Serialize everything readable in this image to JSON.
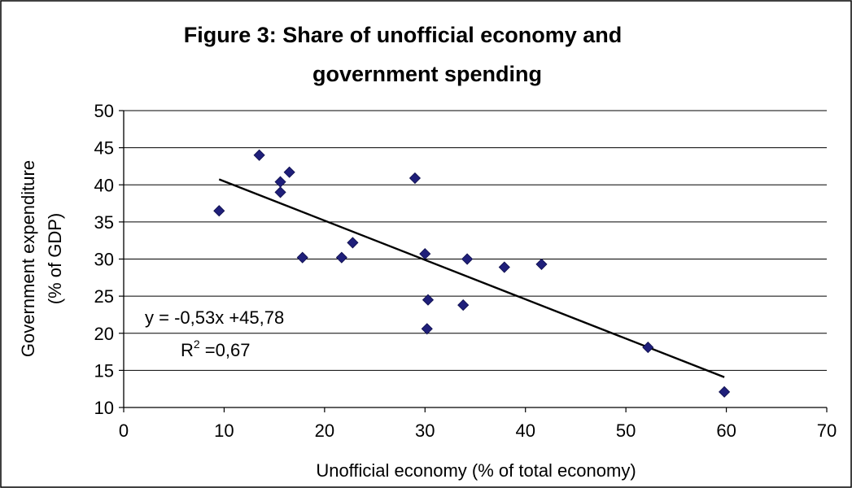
{
  "chart_data": {
    "type": "scatter",
    "title_lines": [
      "Figure 3: Share of unofficial economy and",
      "government spending"
    ],
    "xlabel": "Unofficial economy (% of total economy)",
    "ylabel_lines": [
      "Government expenditure",
      "(% of GDP)"
    ],
    "xlim": [
      0,
      70
    ],
    "ylim": [
      10,
      50
    ],
    "x_ticks": [
      0,
      10,
      20,
      30,
      40,
      50,
      60,
      70
    ],
    "y_ticks": [
      10,
      15,
      20,
      25,
      30,
      35,
      40,
      45,
      50
    ],
    "grid": "horizontal",
    "marker_color": "#1f1f7a",
    "points": [
      {
        "x": 9.5,
        "y": 36.5
      },
      {
        "x": 13.5,
        "y": 44.0
      },
      {
        "x": 15.6,
        "y": 40.4
      },
      {
        "x": 15.6,
        "y": 39.0
      },
      {
        "x": 16.5,
        "y": 41.7
      },
      {
        "x": 17.8,
        "y": 30.2
      },
      {
        "x": 21.7,
        "y": 30.2
      },
      {
        "x": 22.8,
        "y": 32.2
      },
      {
        "x": 29.0,
        "y": 40.9
      },
      {
        "x": 30.0,
        "y": 30.7
      },
      {
        "x": 30.2,
        "y": 20.6
      },
      {
        "x": 30.3,
        "y": 24.5
      },
      {
        "x": 33.8,
        "y": 23.8
      },
      {
        "x": 34.2,
        "y": 30.0
      },
      {
        "x": 37.9,
        "y": 28.9
      },
      {
        "x": 41.6,
        "y": 29.3
      },
      {
        "x": 52.2,
        "y": 18.1
      },
      {
        "x": 59.8,
        "y": 12.1
      }
    ],
    "trendline": {
      "slope": -0.53,
      "intercept": 45.78,
      "x_start": 9.5,
      "x_end": 59.8,
      "color": "#000000"
    },
    "equation_text": "y = -0,53x +45,78",
    "r2_prefix": "R",
    "r2_sup": "2",
    "r2_value": " =0,67"
  }
}
